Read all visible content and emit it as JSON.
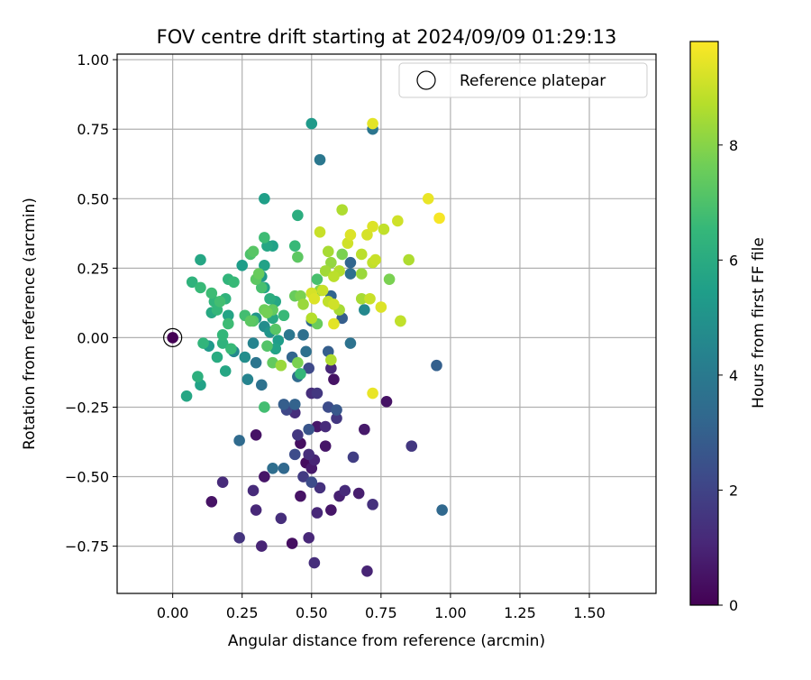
{
  "chart_data": {
    "type": "scatter",
    "title": "FOV centre drift starting at 2024/09/09 01:29:13",
    "xlabel": "Angular distance from reference (arcmin)",
    "ylabel": "Rotation from reference (arcmin)",
    "xlim": [
      -0.2,
      1.74
    ],
    "ylim": [
      -0.92,
      1.02
    ],
    "xticks": [
      0.0,
      0.25,
      0.5,
      0.75,
      1.0,
      1.25,
      1.5
    ],
    "xtick_labels": [
      "0.00",
      "0.25",
      "0.50",
      "0.75",
      "1.00",
      "1.25",
      "1.50"
    ],
    "yticks": [
      -0.75,
      -0.5,
      -0.25,
      0.0,
      0.25,
      0.5,
      0.75,
      1.0
    ],
    "ytick_labels": [
      "−0.75",
      "−0.50",
      "−0.25",
      "0.00",
      "0.25",
      "0.50",
      "0.75",
      "1.00"
    ],
    "grid": true,
    "legend": {
      "position": "top-right",
      "entries": [
        "Reference platepar"
      ]
    },
    "reference_point": {
      "x": 0.0,
      "y": 0.0
    },
    "colorbar": {
      "label": "Hours from first FF file",
      "colormap": "viridis",
      "range": [
        0,
        9.8
      ],
      "ticks": [
        0,
        2,
        4,
        6,
        8
      ],
      "tick_labels": [
        "0",
        "2",
        "4",
        "6",
        "8"
      ]
    },
    "points": [
      {
        "x": 0.0,
        "y": 0.0,
        "c": 0.0
      },
      {
        "x": 0.14,
        "y": -0.59,
        "c": 0.5
      },
      {
        "x": 0.18,
        "y": -0.52,
        "c": 1.2
      },
      {
        "x": 0.24,
        "y": -0.72,
        "c": 1.5
      },
      {
        "x": 0.29,
        "y": -0.55,
        "c": 1.2
      },
      {
        "x": 0.3,
        "y": -0.62,
        "c": 1.1
      },
      {
        "x": 0.32,
        "y": -0.75,
        "c": 1.0
      },
      {
        "x": 0.33,
        "y": -0.5,
        "c": 0.6
      },
      {
        "x": 0.3,
        "y": -0.35,
        "c": 0.5
      },
      {
        "x": 0.39,
        "y": -0.65,
        "c": 1.3
      },
      {
        "x": 0.43,
        "y": -0.74,
        "c": 0.4
      },
      {
        "x": 0.46,
        "y": -0.57,
        "c": 0.5
      },
      {
        "x": 0.48,
        "y": -0.45,
        "c": 0.3
      },
      {
        "x": 0.49,
        "y": -0.72,
        "c": 1.1
      },
      {
        "x": 0.51,
        "y": -0.81,
        "c": 1.3
      },
      {
        "x": 0.52,
        "y": -0.63,
        "c": 1.1
      },
      {
        "x": 0.53,
        "y": -0.54,
        "c": 1.4
      },
      {
        "x": 0.57,
        "y": -0.62,
        "c": 0.6
      },
      {
        "x": 0.6,
        "y": -0.57,
        "c": 0.9
      },
      {
        "x": 0.62,
        "y": -0.55,
        "c": 1.2
      },
      {
        "x": 0.67,
        "y": -0.56,
        "c": 0.8
      },
      {
        "x": 0.7,
        "y": -0.84,
        "c": 1.0
      },
      {
        "x": 0.72,
        "y": -0.6,
        "c": 1.4
      },
      {
        "x": 0.65,
        "y": -0.43,
        "c": 1.8
      },
      {
        "x": 0.69,
        "y": -0.33,
        "c": 0.7
      },
      {
        "x": 0.77,
        "y": -0.23,
        "c": 0.5
      },
      {
        "x": 0.86,
        "y": -0.39,
        "c": 1.6
      },
      {
        "x": 0.97,
        "y": -0.62,
        "c": 3.3
      },
      {
        "x": 0.95,
        "y": -0.1,
        "c": 3.0
      },
      {
        "x": 0.46,
        "y": -0.38,
        "c": 0.4
      },
      {
        "x": 0.49,
        "y": -0.42,
        "c": 1.3
      },
      {
        "x": 0.51,
        "y": -0.44,
        "c": 1.0
      },
      {
        "x": 0.5,
        "y": -0.47,
        "c": 0.7
      },
      {
        "x": 0.52,
        "y": -0.32,
        "c": 0.6
      },
      {
        "x": 0.55,
        "y": -0.32,
        "c": 1.2
      },
      {
        "x": 0.55,
        "y": -0.39,
        "c": 0.6
      },
      {
        "x": 0.45,
        "y": -0.35,
        "c": 1.6
      },
      {
        "x": 0.47,
        "y": -0.5,
        "c": 1.7
      },
      {
        "x": 0.44,
        "y": -0.42,
        "c": 2.3
      },
      {
        "x": 0.5,
        "y": -0.52,
        "c": 2.3
      },
      {
        "x": 0.41,
        "y": -0.26,
        "c": 2.1
      },
      {
        "x": 0.44,
        "y": -0.27,
        "c": 1.3
      },
      {
        "x": 0.5,
        "y": -0.2,
        "c": 1.3
      },
      {
        "x": 0.52,
        "y": -0.2,
        "c": 1.6
      },
      {
        "x": 0.49,
        "y": -0.33,
        "c": 2.6
      },
      {
        "x": 0.56,
        "y": -0.25,
        "c": 2.3
      },
      {
        "x": 0.59,
        "y": -0.29,
        "c": 1.6
      },
      {
        "x": 0.59,
        "y": -0.26,
        "c": 2.7
      },
      {
        "x": 0.58,
        "y": -0.15,
        "c": 0.5
      },
      {
        "x": 0.57,
        "y": -0.11,
        "c": 1.1
      },
      {
        "x": 0.49,
        "y": -0.11,
        "c": 2.2
      },
      {
        "x": 0.56,
        "y": -0.05,
        "c": 2.9
      },
      {
        "x": 0.48,
        "y": -0.05,
        "c": 3.6
      },
      {
        "x": 0.43,
        "y": -0.07,
        "c": 3.2
      },
      {
        "x": 0.45,
        "y": -0.14,
        "c": 3.4
      },
      {
        "x": 0.44,
        "y": -0.24,
        "c": 3.1
      },
      {
        "x": 0.4,
        "y": -0.24,
        "c": 2.9
      },
      {
        "x": 0.36,
        "y": -0.47,
        "c": 3.5
      },
      {
        "x": 0.4,
        "y": -0.47,
        "c": 3.3
      },
      {
        "x": 0.24,
        "y": -0.37,
        "c": 3.4
      },
      {
        "x": 0.32,
        "y": -0.17,
        "c": 3.7
      },
      {
        "x": 0.3,
        "y": -0.09,
        "c": 3.8
      },
      {
        "x": 0.42,
        "y": 0.01,
        "c": 3.9
      },
      {
        "x": 0.47,
        "y": 0.01,
        "c": 3.6
      },
      {
        "x": 0.5,
        "y": 0.06,
        "c": 3.3
      },
      {
        "x": 0.57,
        "y": 0.15,
        "c": 3.2
      },
      {
        "x": 0.61,
        "y": 0.07,
        "c": 2.9
      },
      {
        "x": 0.64,
        "y": 0.23,
        "c": 3.6
      },
      {
        "x": 0.64,
        "y": 0.27,
        "c": 3.2
      },
      {
        "x": 0.64,
        "y": -0.02,
        "c": 3.7
      },
      {
        "x": 0.69,
        "y": 0.1,
        "c": 4.6
      },
      {
        "x": 0.72,
        "y": 0.75,
        "c": 3.8
      },
      {
        "x": 0.53,
        "y": 0.64,
        "c": 3.9
      },
      {
        "x": 0.5,
        "y": 0.77,
        "c": 5.3
      },
      {
        "x": 0.33,
        "y": 0.5,
        "c": 5.5
      },
      {
        "x": 0.45,
        "y": 0.44,
        "c": 6.1
      },
      {
        "x": 0.34,
        "y": 0.33,
        "c": 5.8
      },
      {
        "x": 0.36,
        "y": 0.33,
        "c": 5.6
      },
      {
        "x": 0.33,
        "y": 0.26,
        "c": 5.6
      },
      {
        "x": 0.25,
        "y": 0.26,
        "c": 5.4
      },
      {
        "x": 0.32,
        "y": 0.22,
        "c": 5.2
      },
      {
        "x": 0.33,
        "y": 0.18,
        "c": 5.6
      },
      {
        "x": 0.35,
        "y": 0.14,
        "c": 6.1
      },
      {
        "x": 0.37,
        "y": 0.13,
        "c": 5.8
      },
      {
        "x": 0.36,
        "y": 0.07,
        "c": 5.9
      },
      {
        "x": 0.3,
        "y": 0.07,
        "c": 5.1
      },
      {
        "x": 0.33,
        "y": 0.04,
        "c": 4.8
      },
      {
        "x": 0.35,
        "y": 0.02,
        "c": 5.1
      },
      {
        "x": 0.38,
        "y": -0.01,
        "c": 5.4
      },
      {
        "x": 0.37,
        "y": -0.04,
        "c": 5.6
      },
      {
        "x": 0.29,
        "y": -0.02,
        "c": 4.4
      },
      {
        "x": 0.26,
        "y": -0.07,
        "c": 4.8
      },
      {
        "x": 0.27,
        "y": -0.15,
        "c": 4.4
      },
      {
        "x": 0.22,
        "y": -0.05,
        "c": 4.6
      },
      {
        "x": 0.19,
        "y": -0.12,
        "c": 5.8
      },
      {
        "x": 0.1,
        "y": -0.17,
        "c": 5.6
      },
      {
        "x": 0.05,
        "y": -0.21,
        "c": 5.8
      },
      {
        "x": 0.09,
        "y": -0.14,
        "c": 6.2
      },
      {
        "x": 0.11,
        "y": -0.02,
        "c": 6.4
      },
      {
        "x": 0.13,
        "y": -0.03,
        "c": 5.3
      },
      {
        "x": 0.16,
        "y": -0.07,
        "c": 6.0
      },
      {
        "x": 0.18,
        "y": -0.02,
        "c": 6.3
      },
      {
        "x": 0.18,
        "y": 0.01,
        "c": 6.5
      },
      {
        "x": 0.21,
        "y": -0.04,
        "c": 6.6
      },
      {
        "x": 0.2,
        "y": 0.08,
        "c": 5.7
      },
      {
        "x": 0.19,
        "y": 0.14,
        "c": 6.3
      },
      {
        "x": 0.15,
        "y": 0.13,
        "c": 6.4
      },
      {
        "x": 0.14,
        "y": 0.09,
        "c": 5.9
      },
      {
        "x": 0.14,
        "y": 0.16,
        "c": 6.7
      },
      {
        "x": 0.16,
        "y": 0.1,
        "c": 6.5
      },
      {
        "x": 0.17,
        "y": 0.13,
        "c": 6.8
      },
      {
        "x": 0.2,
        "y": 0.05,
        "c": 6.7
      },
      {
        "x": 0.2,
        "y": 0.21,
        "c": 6.4
      },
      {
        "x": 0.22,
        "y": 0.2,
        "c": 6.6
      },
      {
        "x": 0.1,
        "y": 0.18,
        "c": 6.6
      },
      {
        "x": 0.07,
        "y": 0.2,
        "c": 6.3
      },
      {
        "x": 0.1,
        "y": 0.28,
        "c": 5.8
      },
      {
        "x": 0.26,
        "y": 0.08,
        "c": 6.8
      },
      {
        "x": 0.28,
        "y": 0.06,
        "c": 7.3
      },
      {
        "x": 0.29,
        "y": 0.06,
        "c": 7.1
      },
      {
        "x": 0.28,
        "y": 0.3,
        "c": 7.0
      },
      {
        "x": 0.29,
        "y": 0.31,
        "c": 7.2
      },
      {
        "x": 0.33,
        "y": 0.36,
        "c": 6.7
      },
      {
        "x": 0.3,
        "y": 0.21,
        "c": 7.3
      },
      {
        "x": 0.31,
        "y": 0.23,
        "c": 7.5
      },
      {
        "x": 0.32,
        "y": 0.18,
        "c": 6.9
      },
      {
        "x": 0.33,
        "y": 0.1,
        "c": 7.6
      },
      {
        "x": 0.34,
        "y": 0.09,
        "c": 7.7
      },
      {
        "x": 0.36,
        "y": 0.1,
        "c": 7.4
      },
      {
        "x": 0.34,
        "y": -0.03,
        "c": 7.1
      },
      {
        "x": 0.37,
        "y": 0.03,
        "c": 7.2
      },
      {
        "x": 0.36,
        "y": -0.09,
        "c": 7.4
      },
      {
        "x": 0.33,
        "y": -0.25,
        "c": 6.8
      },
      {
        "x": 0.39,
        "y": -0.1,
        "c": 8.3
      },
      {
        "x": 0.4,
        "y": 0.08,
        "c": 6.6
      },
      {
        "x": 0.44,
        "y": 0.33,
        "c": 6.6
      },
      {
        "x": 0.45,
        "y": 0.29,
        "c": 7.3
      },
      {
        "x": 0.44,
        "y": 0.15,
        "c": 7.5
      },
      {
        "x": 0.46,
        "y": 0.15,
        "c": 7.8
      },
      {
        "x": 0.47,
        "y": 0.12,
        "c": 8.3
      },
      {
        "x": 0.45,
        "y": -0.09,
        "c": 7.8
      },
      {
        "x": 0.46,
        "y": -0.13,
        "c": 6.5
      },
      {
        "x": 0.5,
        "y": 0.16,
        "c": 9.2
      },
      {
        "x": 0.51,
        "y": 0.14,
        "c": 9.3
      },
      {
        "x": 0.52,
        "y": 0.05,
        "c": 7.5
      },
      {
        "x": 0.5,
        "y": 0.07,
        "c": 8.7
      },
      {
        "x": 0.52,
        "y": 0.21,
        "c": 6.9
      },
      {
        "x": 0.53,
        "y": 0.17,
        "c": 8.0
      },
      {
        "x": 0.53,
        "y": 0.38,
        "c": 9.0
      },
      {
        "x": 0.54,
        "y": 0.17,
        "c": 9.0
      },
      {
        "x": 0.55,
        "y": 0.24,
        "c": 8.4
      },
      {
        "x": 0.56,
        "y": 0.31,
        "c": 8.5
      },
      {
        "x": 0.57,
        "y": 0.27,
        "c": 8.2
      },
      {
        "x": 0.58,
        "y": 0.22,
        "c": 8.8
      },
      {
        "x": 0.56,
        "y": 0.13,
        "c": 8.9
      },
      {
        "x": 0.58,
        "y": 0.12,
        "c": 9.1
      },
      {
        "x": 0.58,
        "y": 0.05,
        "c": 9.4
      },
      {
        "x": 0.6,
        "y": 0.1,
        "c": 8.5
      },
      {
        "x": 0.61,
        "y": 0.3,
        "c": 7.8
      },
      {
        "x": 0.61,
        "y": 0.46,
        "c": 8.6
      },
      {
        "x": 0.63,
        "y": 0.34,
        "c": 9.1
      },
      {
        "x": 0.64,
        "y": 0.37,
        "c": 9.3
      },
      {
        "x": 0.6,
        "y": 0.24,
        "c": 8.7
      },
      {
        "x": 0.57,
        "y": -0.08,
        "c": 8.6
      },
      {
        "x": 0.68,
        "y": 0.3,
        "c": 8.8
      },
      {
        "x": 0.68,
        "y": 0.23,
        "c": 8.3
      },
      {
        "x": 0.68,
        "y": 0.14,
        "c": 8.5
      },
      {
        "x": 0.7,
        "y": 0.37,
        "c": 9.2
      },
      {
        "x": 0.71,
        "y": 0.14,
        "c": 9.0
      },
      {
        "x": 0.72,
        "y": 0.27,
        "c": 8.9
      },
      {
        "x": 0.72,
        "y": 0.4,
        "c": 9.3
      },
      {
        "x": 0.73,
        "y": 0.28,
        "c": 9.0
      },
      {
        "x": 0.75,
        "y": 0.11,
        "c": 9.3
      },
      {
        "x": 0.76,
        "y": 0.39,
        "c": 8.9
      },
      {
        "x": 0.78,
        "y": 0.21,
        "c": 7.8
      },
      {
        "x": 0.81,
        "y": 0.42,
        "c": 9.1
      },
      {
        "x": 0.82,
        "y": 0.06,
        "c": 8.9
      },
      {
        "x": 0.82,
        "y": 0.06,
        "c": 8.3
      },
      {
        "x": 0.85,
        "y": 0.28,
        "c": 8.6
      },
      {
        "x": 0.92,
        "y": 0.5,
        "c": 9.5
      },
      {
        "x": 0.96,
        "y": 0.43,
        "c": 9.7
      },
      {
        "x": 0.72,
        "y": 0.77,
        "c": 9.4
      },
      {
        "x": 0.72,
        "y": -0.2,
        "c": 9.5
      }
    ]
  }
}
